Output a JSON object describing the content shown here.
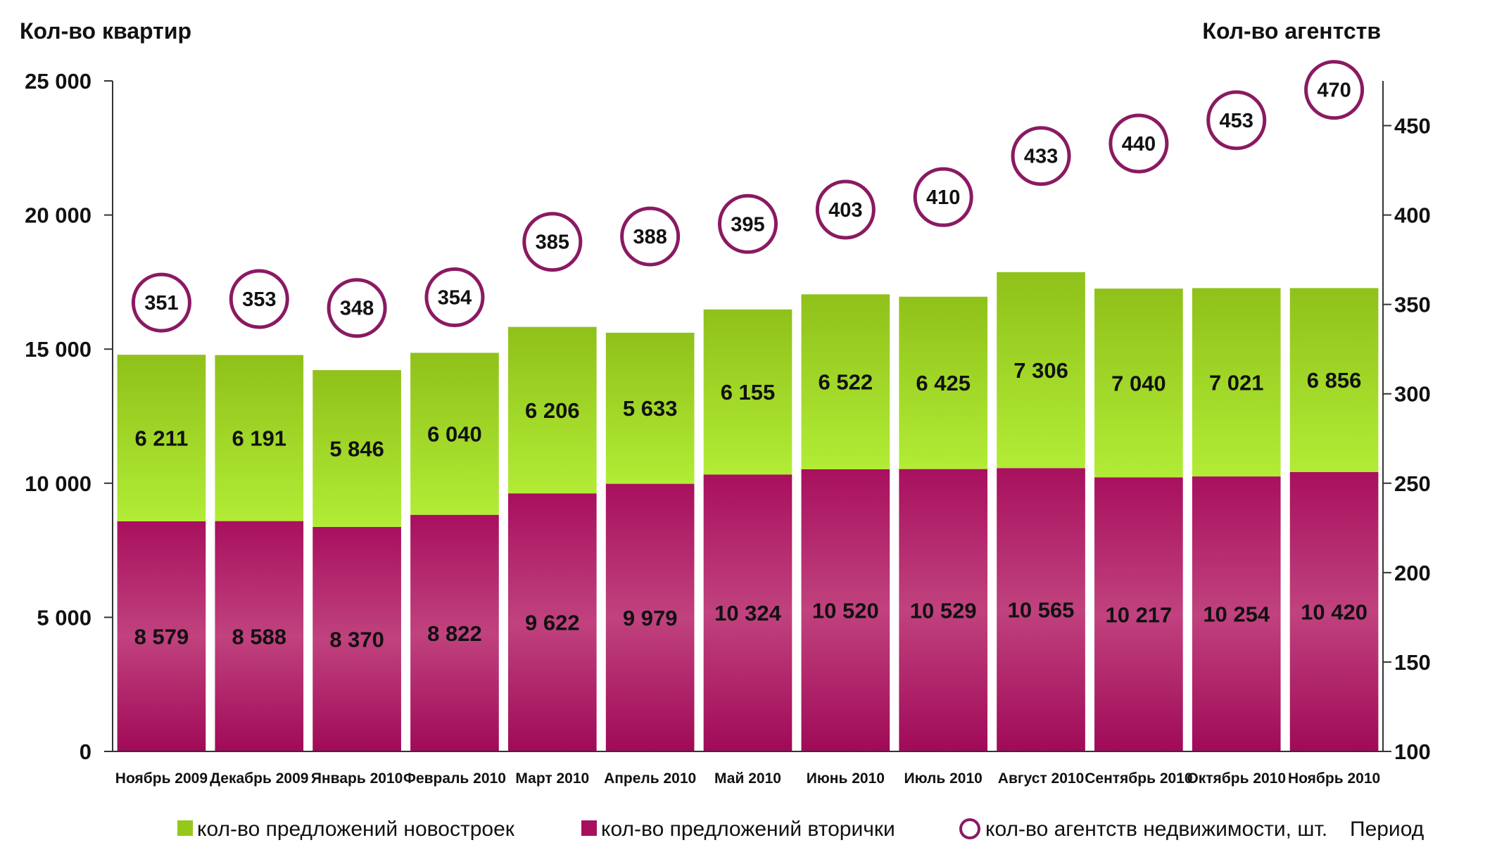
{
  "chart_data": {
    "type": "bar",
    "stacked": true,
    "y_left_label": "Кол-во квартир",
    "y_right_label": "Кол-во агентств",
    "ylim_left": [
      0,
      25000
    ],
    "ylim_right": [
      100,
      475
    ],
    "yticks_left": [
      "0",
      "5 000",
      "10 000",
      "15 000",
      "20 000",
      "25 000"
    ],
    "yticks_left_values": [
      0,
      5000,
      10000,
      15000,
      20000,
      25000
    ],
    "yticks_right": [
      "100",
      "150",
      "200",
      "250",
      "300",
      "350",
      "400",
      "450"
    ],
    "yticks_right_values": [
      100,
      150,
      200,
      250,
      300,
      350,
      400,
      450
    ],
    "categories": [
      "Ноябрь 2009",
      "Декабрь 2009",
      "Январь 2010",
      "Февраль 2010",
      "Март 2010",
      "Апрель 2010",
      "Май 2010",
      "Июнь 2010",
      "Июль 2010",
      "Август 2010",
      "Сентябрь 2010",
      "Октябрь 2010",
      "Ноябрь 2010"
    ],
    "series": [
      {
        "name": "кол-во предложений вторички",
        "color": "#a8105e",
        "values": [
          8579,
          8588,
          8370,
          8822,
          9622,
          9979,
          10324,
          10520,
          10529,
          10565,
          10217,
          10254,
          10420
        ],
        "labels": [
          "8 579",
          "8 588",
          "8 370",
          "8 822",
          "9 622",
          "9 979",
          "10 324",
          "10 520",
          "10 529",
          "10 565",
          "10 217",
          "10 254",
          "10 420"
        ]
      },
      {
        "name": "кол-во предложений новостроек",
        "color": "#94c81a",
        "values": [
          6211,
          6191,
          5846,
          6040,
          6206,
          5633,
          6155,
          6522,
          6425,
          7306,
          7040,
          7021,
          6856
        ],
        "labels": [
          "6 211",
          "6 191",
          "5 846",
          "6 040",
          "6 206",
          "5 633",
          "6 155",
          "6 522",
          "6 425",
          "7 306",
          "7 040",
          "7 021",
          "6 856"
        ]
      },
      {
        "name": "кол-во агентств недвижимости, шт.",
        "type": "marker",
        "axis": "right",
        "color": "#8a1a62",
        "values": [
          351,
          353,
          348,
          354,
          385,
          388,
          395,
          403,
          410,
          433,
          440,
          453,
          470
        ],
        "labels": [
          "351",
          "353",
          "348",
          "354",
          "385",
          "388",
          "395",
          "403",
          "410",
          "433",
          "440",
          "453",
          "470"
        ]
      }
    ],
    "legend": {
      "placement": "bottom",
      "items": [
        "кол-во предложений новостроек",
        "кол-во предложений вторички",
        "кол-во агентств недвижимости, шт."
      ],
      "suffix": "Период"
    },
    "grid": false
  }
}
